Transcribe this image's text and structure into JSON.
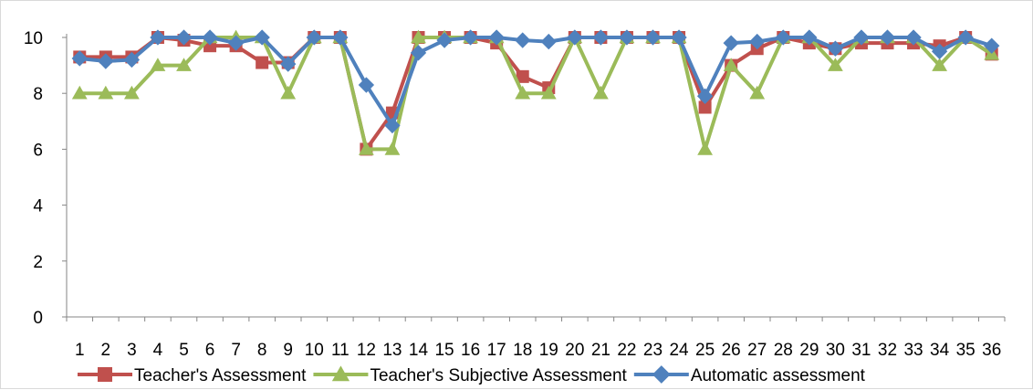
{
  "chart_data": {
    "type": "line",
    "title": "",
    "xlabel": "",
    "ylabel": "",
    "x": [
      "1",
      "2",
      "3",
      "4",
      "5",
      "6",
      "7",
      "8",
      "9",
      "10",
      "11",
      "12",
      "13",
      "14",
      "15",
      "16",
      "17",
      "18",
      "19",
      "20",
      "21",
      "22",
      "23",
      "24",
      "25",
      "26",
      "27",
      "28",
      "29",
      "30",
      "31",
      "32",
      "33",
      "34",
      "35",
      "36"
    ],
    "ylim": [
      0,
      10
    ],
    "yticks": [
      "0",
      "2",
      "4",
      "6",
      "8",
      "10"
    ],
    "grid": false,
    "legend": "bottom",
    "series": [
      {
        "name": "Teacher's Assessment",
        "color": "#C0504D",
        "marker": "square",
        "values": [
          9.3,
          9.3,
          9.3,
          10,
          9.9,
          9.7,
          9.7,
          9.1,
          9.1,
          10,
          10,
          6,
          7.3,
          10,
          10,
          10,
          9.8,
          8.6,
          8.2,
          10,
          10,
          10,
          10,
          10,
          7.5,
          9,
          9.6,
          10,
          9.8,
          9.6,
          9.8,
          9.8,
          9.8,
          9.7,
          10,
          9.4
        ]
      },
      {
        "name": "Teacher's Subjective Assessment",
        "color": "#9BBB59",
        "marker": "triangle",
        "values": [
          8,
          8,
          8,
          9,
          9,
          10,
          10,
          10,
          8,
          10,
          10,
          6,
          6,
          10,
          10,
          10,
          10,
          8,
          8,
          10,
          8,
          10,
          10,
          10,
          6,
          9,
          8,
          10,
          10,
          9,
          10,
          10,
          10,
          9,
          10,
          9.4
        ]
      },
      {
        "name": "Automatic assessment",
        "color": "#4F81BD",
        "marker": "diamond",
        "values": [
          9.25,
          9.15,
          9.2,
          10,
          10,
          10,
          9.8,
          10,
          9.05,
          10,
          10,
          8.3,
          6.85,
          9.45,
          9.9,
          10,
          10,
          9.9,
          9.85,
          10,
          10,
          10,
          10,
          10,
          7.9,
          9.8,
          9.85,
          10,
          10,
          9.6,
          10,
          10,
          10,
          9.5,
          10,
          9.7
        ]
      }
    ]
  }
}
